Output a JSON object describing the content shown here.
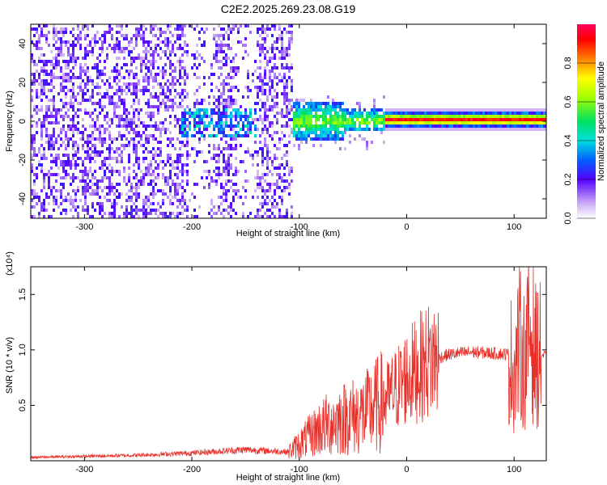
{
  "title": "C2E2.2025.269.23.08.G19",
  "chart_data": [
    {
      "type": "heatmap",
      "xlabel": "Height of straight line (km)",
      "ylabel": "Frequency (Hz)",
      "xlim": [
        -350,
        130
      ],
      "ylim": [
        -50,
        50
      ],
      "xticks": [
        -300,
        -200,
        -100,
        0,
        100
      ],
      "yticks": [
        -40,
        -20,
        0,
        20,
        40
      ],
      "colorbar": {
        "label": "Normalized spectral amplitude",
        "range": [
          0,
          1
        ],
        "ticks": [
          0.0,
          0.2,
          0.4,
          0.6,
          0.8
        ]
      },
      "regions": [
        {
          "x": [
            -350,
            -108
          ],
          "freq_spread": [
            -50,
            50
          ],
          "amplitude": 0.15
        },
        {
          "x": [
            -108,
            -20
          ],
          "freq_spread": [
            -8,
            8
          ],
          "amplitude": 0.35
        },
        {
          "x": [
            -20,
            130
          ],
          "freq_center": 1,
          "freq_spread": [
            -2,
            3
          ],
          "amplitude": 0.9
        }
      ]
    },
    {
      "type": "line",
      "xlabel": "Height of straight line (km)",
      "ylabel": "SNR (10 * v/v)",
      "yscale_label": "(x10⁴)",
      "xlim": [
        -350,
        130
      ],
      "ylim": [
        0,
        17500
      ],
      "xticks": [
        -300,
        -200,
        -100,
        0,
        100
      ],
      "yticks": [
        "0.5",
        "1.0",
        "1.5"
      ],
      "series": [
        {
          "color": "#e8302a",
          "x": [
            -350,
            -300,
            -250,
            -200,
            -150,
            -110,
            -100,
            -80,
            -60,
            -40,
            -20,
            0,
            20,
            40,
            60,
            80,
            95,
            100,
            105,
            110,
            115,
            120,
            130
          ],
          "y": [
            300,
            400,
            500,
            700,
            1000,
            800,
            1500,
            3000,
            3800,
            4200,
            5500,
            7500,
            9000,
            9600,
            9800,
            9700,
            9600,
            8000,
            10500,
            9000,
            12000,
            9500,
            9500
          ]
        }
      ]
    }
  ]
}
